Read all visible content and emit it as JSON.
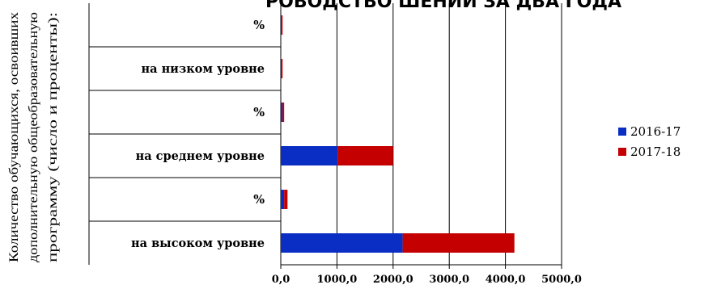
{
  "chart_data": {
    "type": "bar",
    "orientation": "horizontal",
    "stacked": true,
    "title_fragment": "РОВОДСТВО ШЕНИИ ЗА ДВА ГОДА",
    "ylabel_lines": [
      "Количество обучающихся, освоивших",
      "дополнительную общеобразовательную",
      "программу (число и проценты):"
    ],
    "categories": [
      "на высоком уровне",
      "%",
      "на среднем уровне",
      "%",
      "на низком уровне",
      "%"
    ],
    "series": [
      {
        "name": "2016-17",
        "color": "#0a2ec4",
        "values": [
          2170,
          60,
          1010,
          30,
          10,
          10
        ]
      },
      {
        "name": "2017-18",
        "color": "#c40000",
        "values": [
          1990,
          60,
          990,
          30,
          10,
          10
        ]
      }
    ],
    "xlim": [
      0,
      5000
    ],
    "xticks": [
      0,
      1000,
      2000,
      3000,
      4000,
      5000
    ],
    "xtick_labels": [
      "0,0",
      "1000,0",
      "2000,0",
      "3000,0",
      "4000,0",
      "5000,0"
    ],
    "legend_position": "right",
    "grid": "vertical"
  }
}
